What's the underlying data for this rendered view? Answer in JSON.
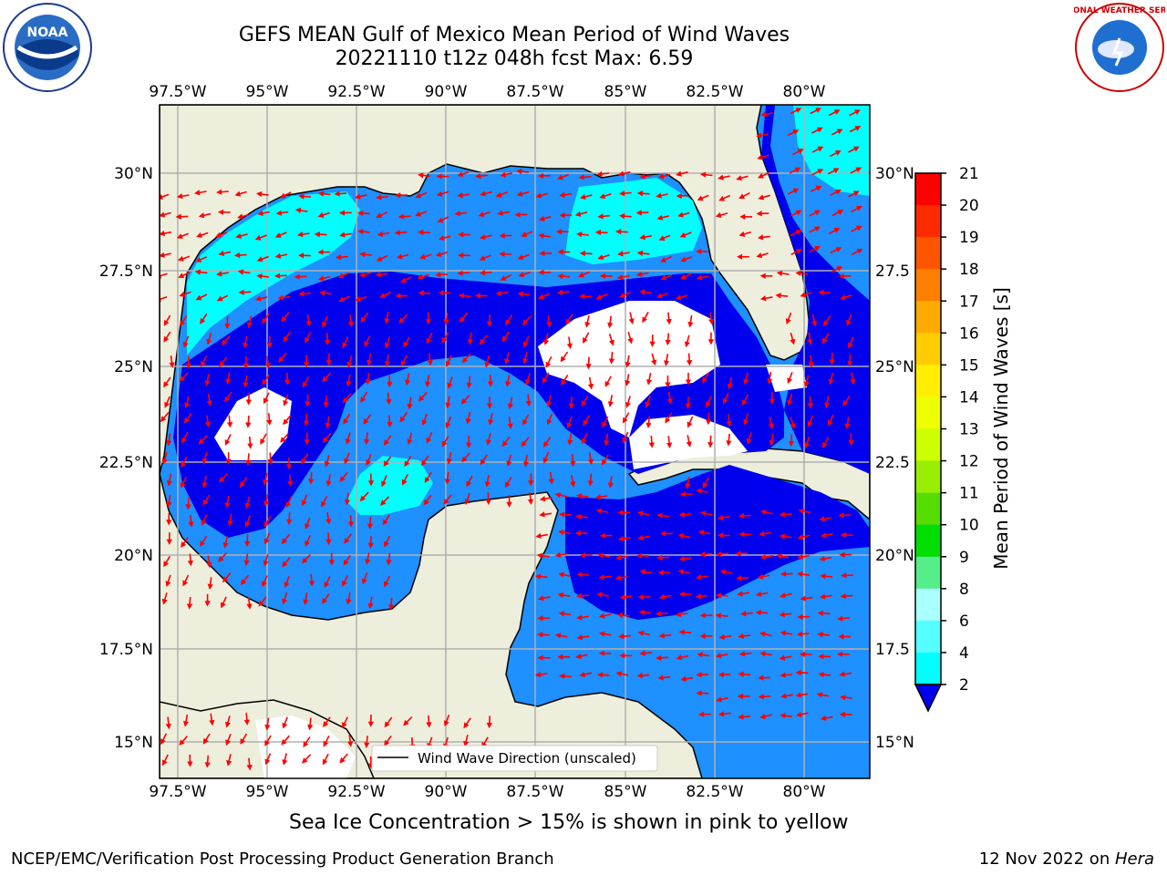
{
  "title_line1": "GEFS MEAN Gulf of Mexico Mean Period of Wind Waves",
  "title_line2": "20221110 t12z 048h fcst   Max: 6.59",
  "lon_labels": [
    "97.5°W",
    "95°W",
    "92.5°W",
    "90°W",
    "87.5°W",
    "85°W",
    "82.5°W",
    "80°W"
  ],
  "lat_labels_left": [
    "30°N",
    "27.5°N",
    "25°N",
    "22.5°N",
    "20°N",
    "17.5°N",
    "15°N"
  ],
  "lat_labels_right": [
    "30°N",
    "27.5",
    "25°N",
    "22.5",
    "20°N",
    "17.5",
    "15°N"
  ],
  "legend_label": "Wind Wave Direction (unscaled)",
  "colorbar": {
    "label": "Mean Period of Wind Waves [s]",
    "ticks": [
      "21",
      "20",
      "19",
      "18",
      "17",
      "16",
      "15",
      "14",
      "13",
      "12",
      "11",
      "10",
      "9",
      "8",
      "6",
      "4",
      "2"
    ],
    "colors": [
      "#ff0000",
      "#ff2a00",
      "#ff5500",
      "#ff7f00",
      "#ffaa00",
      "#ffcc00",
      "#ffee00",
      "#eeff00",
      "#ccff00",
      "#99ee00",
      "#55dd00",
      "#00dd00",
      "#55ee88",
      "#aaffff",
      "#55ffff",
      "#00ffff",
      "#0088ff"
    ],
    "under_color": "#0000ee"
  },
  "colors": {
    "land": "#eeeedd",
    "blue_deep": "#0000ee",
    "blue_mid": "#1e90ff",
    "cyan": "#00ffff",
    "arrow": "#ff0000"
  },
  "subnote": "Sea Ice Concentration > 15% is shown in pink to yellow",
  "footer_left": "NCEP/EMC/Verification Post Processing Product Generation Branch",
  "footer_right_prefix": "12 Nov 2022 on ",
  "footer_right_host": "Hera",
  "logos": {
    "left": "NOAA",
    "right": "NATIONAL WEATHER SERVICE"
  }
}
